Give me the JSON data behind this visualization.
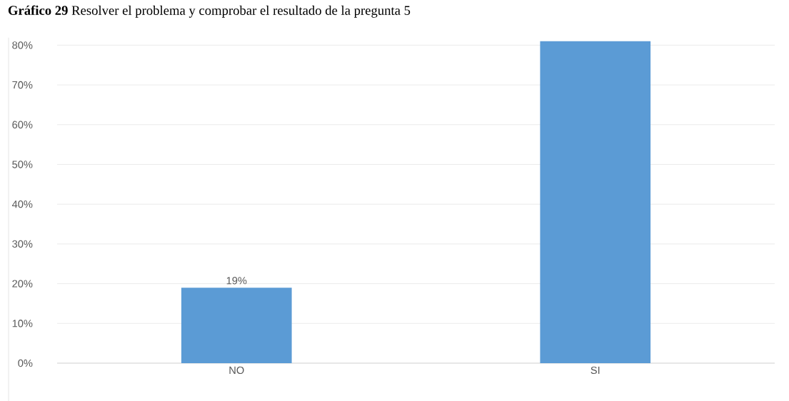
{
  "chart_data": {
    "type": "bar",
    "title": "**Gráfico 29** Resolver el problema y comprobar el resultado de la pregunta 5",
    "categories": [
      "NO",
      "SI"
    ],
    "values": [
      19,
      81
    ],
    "color": "#5b9bd5",
    "value_labels": [
      "19%",
      null
    ],
    "ylim": [
      0,
      81.5
    ],
    "yticks": [
      {
        "value": 0,
        "label": "0%"
      },
      {
        "value": 10,
        "label": "10%"
      },
      {
        "value": 20,
        "label": "20%"
      },
      {
        "value": 30,
        "label": "30%"
      },
      {
        "value": 40,
        "label": "40%"
      },
      {
        "value": 50,
        "label": "50%"
      },
      {
        "value": 60,
        "label": "60%"
      },
      {
        "value": 70,
        "label": "70%"
      },
      {
        "value": 80,
        "label": "80%"
      }
    ],
    "grid": "y"
  }
}
